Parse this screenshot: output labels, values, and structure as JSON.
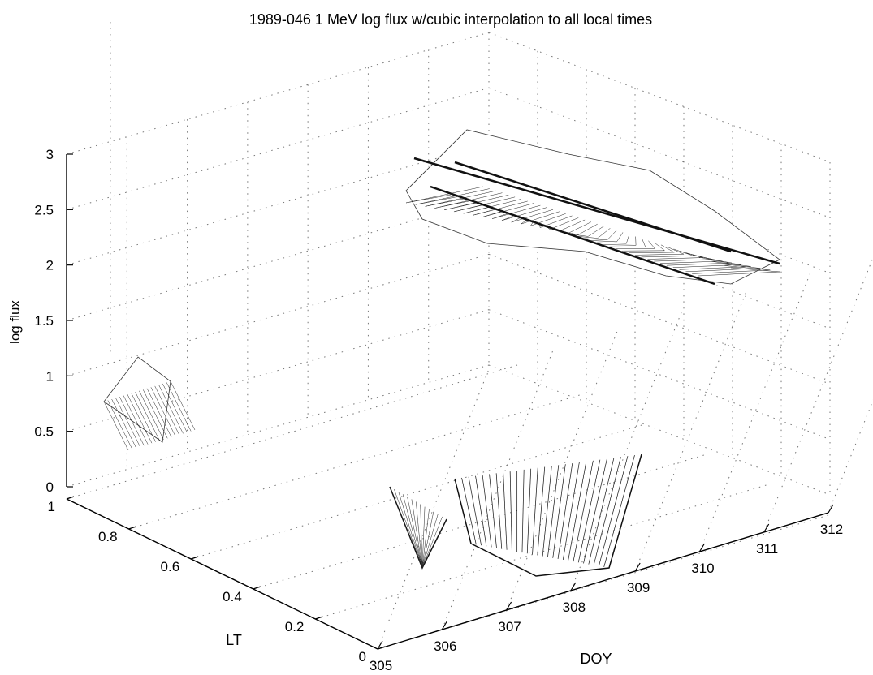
{
  "chart_data": {
    "type": "surface",
    "title": "1989-046 1 MeV log flux w/cubic interpolation to all local times",
    "xlabel": "DOY",
    "ylabel": "LT",
    "zlabel": "log flux",
    "xlim": [
      305,
      312
    ],
    "ylim": [
      0,
      1
    ],
    "zlim": [
      0,
      3
    ],
    "xticks": [
      "305",
      "306",
      "307",
      "308",
      "309",
      "310",
      "311",
      "312"
    ],
    "yticks": [
      "0",
      "0.2",
      "0.4",
      "0.6",
      "0.8",
      "1"
    ],
    "zticks": [
      "0",
      "0.5",
      "1",
      "1.5",
      "2",
      "2.5",
      "3"
    ],
    "grid": true,
    "surface_regions": [
      {
        "doy_range": [
          305,
          307.8
        ],
        "log_flux_range": [
          0,
          1.5
        ]
      },
      {
        "doy_range": [
          307.8,
          312
        ],
        "log_flux_range": [
          0,
          2.9
        ]
      }
    ]
  }
}
